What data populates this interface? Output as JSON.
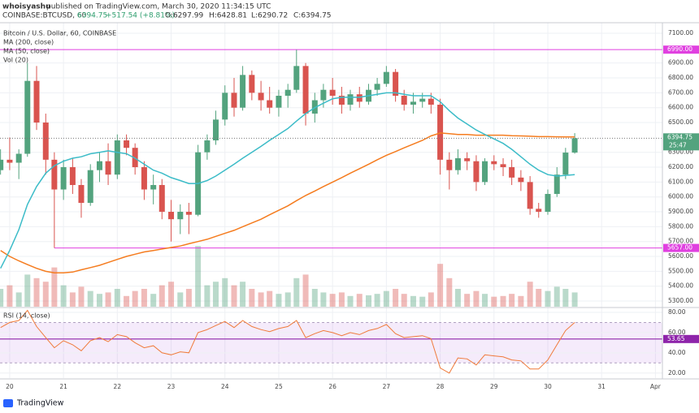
{
  "header": {
    "user": "whoisyashu",
    "published": "published on TradingView.com, March 30, 2020 11:34:15 UTC",
    "symbol": "COINBASE:BTCUSD, 60",
    "last": "6394.75",
    "change": "+517.54 (+8.81%)",
    "ohlc": [
      "O:6297.99",
      "H:6428.81",
      "L:6290.72",
      "C:6394.75"
    ]
  },
  "footer": {
    "brand": "TradingView"
  },
  "chart_data": {
    "type": "candlestick",
    "title": "Bitcoin / U.S. Dollar, 60, COINBASE",
    "x": [
      19.83,
      20,
      20.17,
      20.33,
      20.5,
      20.67,
      20.83,
      21,
      21.17,
      21.33,
      21.5,
      21.67,
      21.83,
      22,
      22.17,
      22.33,
      22.5,
      22.67,
      22.83,
      23,
      23.17,
      23.33,
      23.5,
      23.67,
      23.83,
      24,
      24.17,
      24.33,
      24.5,
      24.67,
      24.83,
      25,
      25.17,
      25.33,
      25.5,
      25.67,
      25.83,
      26,
      26.17,
      26.33,
      26.5,
      26.67,
      26.83,
      27,
      27.17,
      27.33,
      27.5,
      27.67,
      27.83,
      28,
      28.17,
      28.33,
      28.5,
      28.67,
      28.83,
      29,
      29.17,
      29.33,
      29.5,
      29.67,
      29.83,
      30,
      30.17,
      30.33,
      30.5
    ],
    "open": [
      6180,
      6250,
      6230,
      6290,
      6780,
      6500,
      6250,
      6050,
      6200,
      6080,
      5960,
      6180,
      6240,
      6150,
      6380,
      6330,
      6200,
      6050,
      6080,
      5900,
      5850,
      5900,
      5880,
      6300,
      6380,
      6520,
      6700,
      6600,
      6820,
      6700,
      6650,
      6600,
      6680,
      6720,
      6880,
      6560,
      6650,
      6720,
      6680,
      6620,
      6690,
      6640,
      6720,
      6760,
      6840,
      6680,
      6620,
      6640,
      6660,
      6620,
      6250,
      6180,
      6260,
      6240,
      6100,
      6240,
      6220,
      6200,
      6130,
      6100,
      5920,
      5900,
      6020,
      6150,
      6297.99
    ],
    "high": [
      6320,
      6400,
      6320,
      6900,
      6880,
      6560,
      6300,
      6250,
      6260,
      6120,
      6220,
      6300,
      6360,
      6420,
      6420,
      6360,
      6240,
      6150,
      6120,
      5980,
      5950,
      5960,
      6350,
      6420,
      6580,
      6750,
      6800,
      6880,
      6850,
      6780,
      6740,
      6720,
      6760,
      6990,
      6900,
      6700,
      6760,
      6800,
      6740,
      6720,
      6740,
      6760,
      6800,
      6880,
      6860,
      6720,
      6700,
      6700,
      6700,
      6660,
      6300,
      6320,
      6300,
      6280,
      6260,
      6280,
      6260,
      6250,
      6180,
      6140,
      5960,
      6050,
      6200,
      6330,
      6428.81
    ],
    "low": [
      6150,
      6180,
      6120,
      6270,
      6450,
      6150,
      5657,
      5980,
      6020,
      5860,
      5940,
      6100,
      6080,
      6120,
      6280,
      6150,
      5980,
      5950,
      5850,
      5700,
      5750,
      5750,
      5870,
      6250,
      6350,
      6480,
      6540,
      6580,
      6650,
      6580,
      6560,
      6540,
      6600,
      6700,
      6480,
      6500,
      6600,
      6620,
      6560,
      6580,
      6600,
      6620,
      6680,
      6740,
      6640,
      6580,
      6560,
      6600,
      6560,
      6150,
      6050,
      6150,
      6180,
      6040,
      6080,
      6180,
      6140,
      6080,
      6040,
      5880,
      5860,
      5880,
      6000,
      6120,
      6290.72
    ],
    "close": [
      6250,
      6230,
      6290,
      6780,
      6500,
      6250,
      6050,
      6200,
      6080,
      5960,
      6180,
      6240,
      6150,
      6380,
      6330,
      6200,
      6050,
      6080,
      5900,
      5850,
      5900,
      5880,
      6300,
      6380,
      6520,
      6700,
      6600,
      6820,
      6700,
      6650,
      6600,
      6680,
      6720,
      6880,
      6560,
      6650,
      6720,
      6680,
      6620,
      6690,
      6640,
      6720,
      6760,
      6840,
      6680,
      6620,
      6640,
      6660,
      6620,
      6250,
      6180,
      6260,
      6240,
      6100,
      6240,
      6220,
      6200,
      6130,
      6100,
      5920,
      5900,
      6020,
      6150,
      6297.99,
      6394.75
    ],
    "up_color": "#53a37e",
    "down_color": "#d9544f",
    "series": [
      {
        "name": "MA (200, close)",
        "color": "#f57c1f",
        "values": [
          5640,
          5600,
          5570,
          5545,
          5520,
          5500,
          5490,
          5490,
          5495,
          5510,
          5525,
          5540,
          5560,
          5580,
          5600,
          5615,
          5630,
          5640,
          5650,
          5660,
          5670,
          5685,
          5700,
          5715,
          5735,
          5755,
          5775,
          5800,
          5825,
          5850,
          5880,
          5910,
          5940,
          5975,
          6010,
          6040,
          6070,
          6100,
          6130,
          6160,
          6190,
          6220,
          6250,
          6280,
          6305,
          6330,
          6355,
          6380,
          6410,
          6430,
          6425,
          6420,
          6420,
          6415,
          6415,
          6415,
          6415,
          6412,
          6410,
          6408,
          6405,
          6405,
          6404,
          6403,
          6403
        ]
      },
      {
        "name": "MA (50, close)",
        "color": "#3cbcc8",
        "values": [
          5520,
          5640,
          5780,
          5950,
          6070,
          6160,
          6210,
          6240,
          6260,
          6270,
          6290,
          6300,
          6310,
          6300,
          6290,
          6260,
          6220,
          6180,
          6160,
          6130,
          6110,
          6090,
          6090,
          6110,
          6140,
          6180,
          6220,
          6260,
          6300,
          6340,
          6380,
          6420,
          6460,
          6510,
          6560,
          6600,
          6630,
          6660,
          6670,
          6670,
          6670,
          6680,
          6690,
          6700,
          6700,
          6690,
          6680,
          6680,
          6680,
          6640,
          6580,
          6530,
          6490,
          6450,
          6420,
          6390,
          6360,
          6320,
          6270,
          6220,
          6180,
          6150,
          6140,
          6145,
          6150
        ]
      }
    ],
    "volume": {
      "name": "Vol (20)",
      "ylim": [
        0,
        100
      ],
      "values": [
        25,
        30,
        20,
        45,
        40,
        35,
        55,
        30,
        20,
        28,
        22,
        18,
        20,
        25,
        15,
        22,
        25,
        18,
        30,
        35,
        20,
        25,
        85,
        30,
        35,
        40,
        30,
        35,
        25,
        20,
        22,
        18,
        20,
        40,
        45,
        25,
        20,
        18,
        20,
        15,
        18,
        16,
        18,
        22,
        25,
        18,
        15,
        14,
        20,
        60,
        40,
        25,
        18,
        22,
        18,
        14,
        15,
        18,
        15,
        35,
        25,
        22,
        28,
        25,
        20
      ]
    },
    "ylim": [
      5262,
      7171
    ],
    "yticks": [
      {
        "value": 5300,
        "label": "5300.00"
      },
      {
        "value": 5400,
        "label": "5400.00"
      },
      {
        "value": 5500,
        "label": "5500.00"
      },
      {
        "value": 5600,
        "label": "5600.00"
      },
      {
        "value": 5700,
        "label": "5700.00"
      },
      {
        "value": 5800,
        "label": "5800.00"
      },
      {
        "value": 5900,
        "label": "5900.00"
      },
      {
        "value": 6000,
        "label": "6000.00"
      },
      {
        "value": 6100,
        "label": "6100.00"
      },
      {
        "value": 6200,
        "label": "6200.00"
      },
      {
        "value": 6300,
        "label": "6300.00"
      },
      {
        "value": 6500,
        "label": "6500.00"
      },
      {
        "value": 6600,
        "label": "6600.00"
      },
      {
        "value": 6700,
        "label": "6700.00"
      },
      {
        "value": 6800,
        "label": "6800.00"
      },
      {
        "value": 6900,
        "label": "6900.00"
      },
      {
        "value": 7100,
        "label": "7100.00"
      }
    ],
    "xlim": [
      19.82,
      32.13
    ],
    "xticks": [
      20,
      21,
      22,
      23,
      24,
      25,
      26,
      27,
      28,
      29,
      30,
      31,
      {
        "value": 32,
        "label": "Apr"
      }
    ],
    "grid": true,
    "hlines": [
      {
        "value": 6990,
        "label": "6990.00",
        "color": "#e040e0"
      },
      {
        "value": 5657,
        "label": "5657.00",
        "color": "#e040e0"
      }
    ],
    "last_price": {
      "value": 6394.75,
      "label": "6394.75",
      "countdown": "25:47",
      "color": "#53a37e"
    },
    "rsi": {
      "title": "RSI (14, close)",
      "color": "#f07a3a",
      "values": [
        65,
        70,
        72,
        82,
        66,
        55,
        45,
        52,
        48,
        42,
        52,
        55,
        51,
        58,
        56,
        50,
        45,
        47,
        40,
        38,
        41,
        40,
        60,
        63,
        67,
        71,
        65,
        72,
        66,
        63,
        61,
        64,
        66,
        72,
        55,
        59,
        62,
        60,
        57,
        60,
        58,
        62,
        64,
        68,
        59,
        55,
        56,
        57,
        54,
        25,
        20,
        35,
        34,
        28,
        38,
        37,
        36,
        33,
        32,
        24,
        24,
        33,
        48,
        62,
        70
      ],
      "ylim": [
        15,
        84
      ],
      "yticks": [
        {
          "value": 20,
          "label": "20.00"
        },
        {
          "value": 40,
          "label": "40.00"
        },
        {
          "value": 60,
          "label": "60.00"
        },
        {
          "value": 80,
          "label": "80.00"
        }
      ],
      "band": [
        30,
        70
      ],
      "band_color": "#9b39d6",
      "signal": {
        "value": 53.65,
        "label": "53.65",
        "color": "#8e24aa"
      }
    }
  }
}
